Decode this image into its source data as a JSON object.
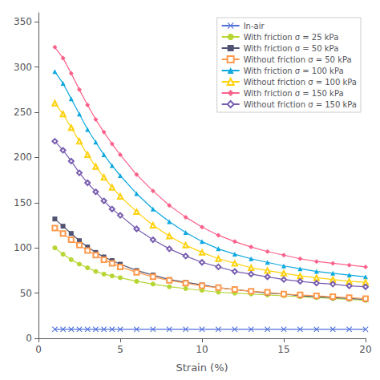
{
  "chart_data": {
    "type": "line",
    "xlabel": "Strain (%)",
    "xlim": [
      0,
      20
    ],
    "ylim": [
      0,
      360
    ],
    "xticks": [
      0,
      5,
      10,
      15,
      20
    ],
    "yticks": [
      0,
      50,
      100,
      150,
      200,
      250,
      300,
      350
    ],
    "legend": "upper right",
    "series": [
      {
        "name": "In-air",
        "marker": "x",
        "line_style": "solid",
        "x": [
          1,
          1.5,
          2,
          2.5,
          3,
          3.5,
          4,
          4.5,
          5,
          6,
          7,
          8,
          9,
          10,
          11,
          12,
          13,
          14,
          15,
          16,
          17,
          18,
          19,
          20
        ],
        "values": [
          10,
          10,
          10,
          10,
          10,
          10,
          10,
          10,
          10,
          10,
          10,
          10,
          10,
          10,
          10,
          10,
          10,
          10,
          10,
          10,
          10,
          10,
          10,
          10
        ]
      },
      {
        "name": "With friction σ = 25 kPa",
        "marker": "circle",
        "line_style": "solid",
        "x": [
          1,
          1.5,
          2,
          2.5,
          3,
          3.5,
          4,
          4.5,
          5,
          6,
          7,
          8,
          9,
          10,
          11,
          12,
          13,
          14,
          15,
          16,
          17,
          18,
          19,
          20
        ],
        "values": [
          100,
          93,
          87,
          82,
          78,
          74,
          71,
          69,
          67,
          63,
          60,
          57,
          55,
          53,
          51,
          50,
          49,
          48,
          47,
          46,
          45,
          44,
          43,
          42
        ]
      },
      {
        "name": "With friction σ = 50 kPa",
        "marker": "square",
        "line_style": "solid",
        "x": [
          1,
          1.5,
          2,
          2.5,
          3,
          3.5,
          4,
          4.5,
          5,
          6,
          7,
          8,
          9,
          10,
          11,
          12,
          13,
          14,
          15,
          16,
          17,
          18,
          19,
          20
        ],
        "values": [
          132,
          124,
          116,
          108,
          101,
          95,
          90,
          86,
          82,
          75,
          70,
          65,
          62,
          59,
          56,
          54,
          52,
          50,
          49,
          47,
          46,
          45,
          44,
          43
        ]
      },
      {
        "name": "Without friction σ = 50 kPa",
        "marker": "open-square",
        "line_style": "solid",
        "x": [
          1,
          1.5,
          2,
          2.5,
          3,
          3.5,
          4,
          4.5,
          5,
          6,
          7,
          8,
          9,
          10,
          11,
          12,
          13,
          14,
          15,
          16,
          17,
          18,
          19,
          20
        ],
        "values": [
          122,
          116,
          109,
          103,
          97,
          92,
          87,
          83,
          79,
          73,
          68,
          64,
          61,
          58,
          56,
          54,
          52,
          51,
          49,
          48,
          47,
          46,
          45,
          44
        ]
      },
      {
        "name": "With friction σ = 100 kPa",
        "marker": "triangle",
        "line_style": "solid",
        "x": [
          1,
          1.5,
          2,
          2.5,
          3,
          3.5,
          4,
          4.5,
          5,
          6,
          7,
          8,
          9,
          10,
          11,
          12,
          13,
          14,
          15,
          16,
          17,
          18,
          19,
          20
        ],
        "values": [
          295,
          282,
          265,
          248,
          231,
          217,
          203,
          191,
          180,
          160,
          143,
          129,
          117,
          107,
          99,
          93,
          88,
          84,
          80,
          77,
          74,
          72,
          70,
          68
        ]
      },
      {
        "name": "Without friction σ = 100 kPa",
        "marker": "open-triangle",
        "line_style": "solid",
        "x": [
          1,
          1.5,
          2,
          2.5,
          3,
          3.5,
          4,
          4.5,
          5,
          6,
          7,
          8,
          9,
          10,
          11,
          12,
          13,
          14,
          15,
          16,
          17,
          18,
          19,
          20
        ],
        "values": [
          260,
          248,
          233,
          218,
          203,
          190,
          178,
          167,
          157,
          140,
          125,
          113,
          103,
          95,
          88,
          83,
          78,
          75,
          72,
          69,
          67,
          65,
          63,
          62
        ]
      },
      {
        "name": "With friction σ = 150 kPa",
        "marker": "diamond",
        "line_style": "solid",
        "x": [
          1,
          1.5,
          2,
          2.5,
          3,
          3.5,
          4,
          4.5,
          5,
          6,
          7,
          8,
          9,
          10,
          11,
          12,
          13,
          14,
          15,
          16,
          17,
          18,
          19,
          20
        ],
        "values": [
          322,
          310,
          293,
          275,
          258,
          242,
          228,
          215,
          203,
          181,
          163,
          147,
          134,
          123,
          114,
          107,
          101,
          96,
          92,
          88,
          85,
          83,
          81,
          79
        ]
      },
      {
        "name": "Without friction σ = 150 kPa",
        "marker": "open-diamond",
        "line_style": "solid",
        "x": [
          1,
          1.5,
          2,
          2.5,
          3,
          3.5,
          4,
          4.5,
          5,
          6,
          7,
          8,
          9,
          10,
          11,
          12,
          13,
          14,
          15,
          16,
          17,
          18,
          19,
          20
        ],
        "values": [
          218,
          208,
          196,
          183,
          172,
          162,
          152,
          143,
          136,
          121,
          109,
          99,
          91,
          84,
          79,
          74,
          71,
          68,
          65,
          63,
          61,
          60,
          58,
          57
        ]
      }
    ]
  }
}
